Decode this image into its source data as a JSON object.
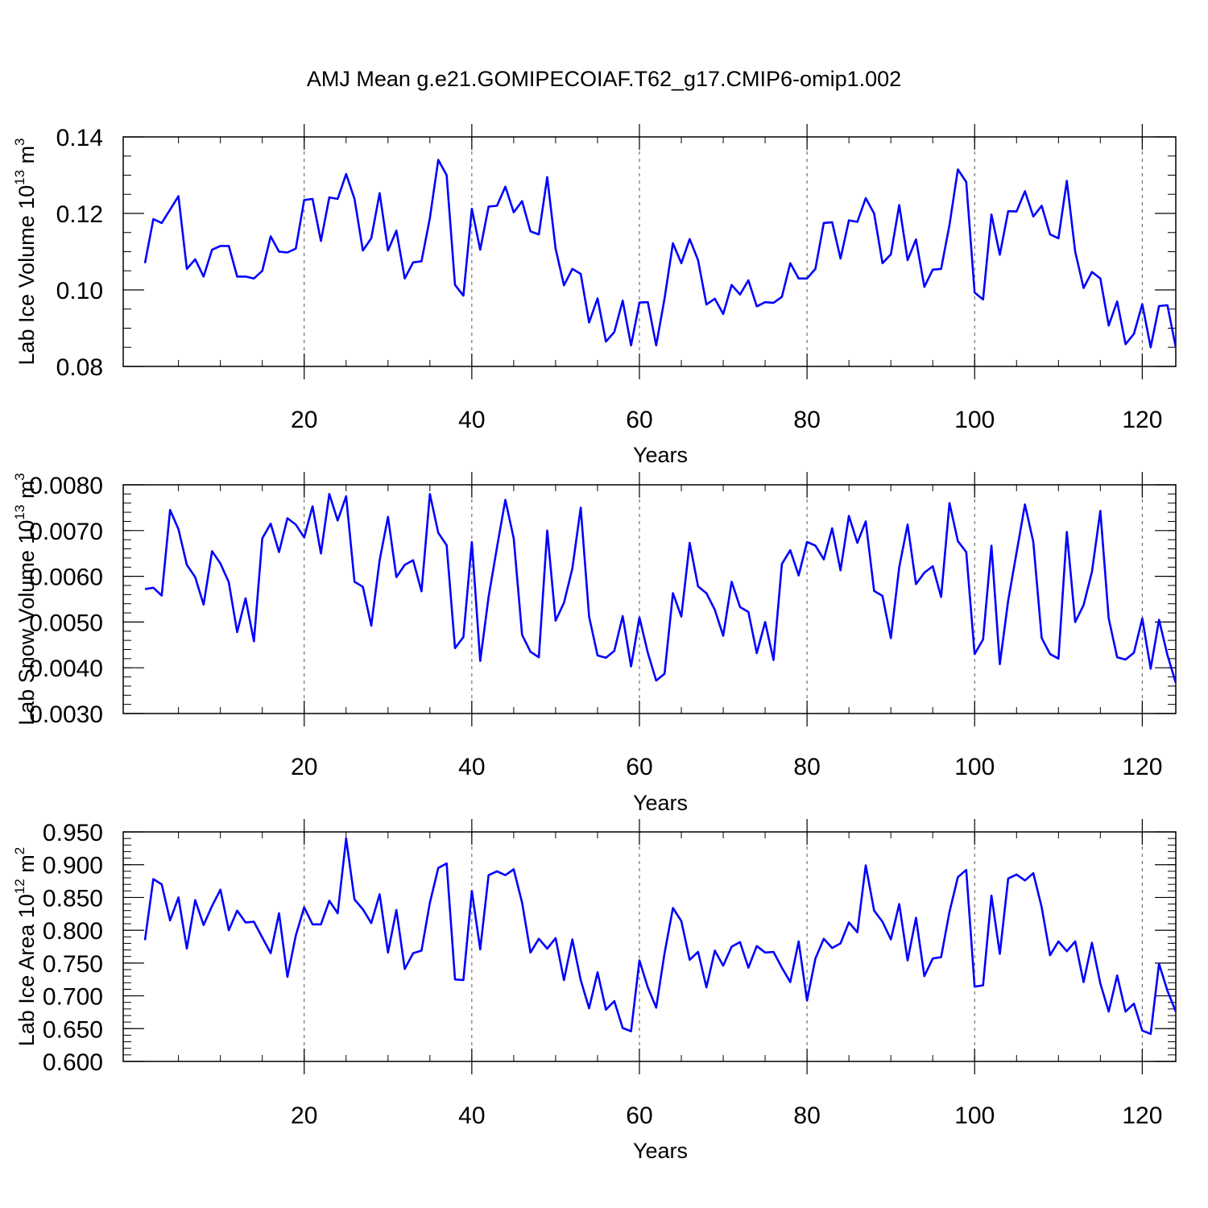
{
  "title": "AMJ Mean g.e21.GOMIPECOIAF.T62_g17.CMIP6-omip1.002",
  "colors": {
    "line": "#0000ff",
    "axis": "#000000",
    "grid": "#555555"
  },
  "chart_data": [
    {
      "type": "line",
      "ylabel": {
        "prefix": "Lab Ice Volume 10",
        "exp": "13",
        "unit": " m",
        "unit_exp": "3"
      },
      "xlabel": "Years",
      "xlim": [
        1,
        124
      ],
      "ylim": [
        0.08,
        0.14
      ],
      "xticks": [
        20,
        40,
        60,
        80,
        100,
        120
      ],
      "xtick_labels": [
        "20",
        "40",
        "60",
        "80",
        "100",
        "120"
      ],
      "yticks": [
        0.08,
        0.1,
        0.12,
        0.14
      ],
      "ytick_labels": [
        "0.08",
        "0.10",
        "0.12",
        "0.14"
      ],
      "yminor_step": 0.005,
      "grid": "vertical dashed at x ticks",
      "series": [
        {
          "name": "Lab Ice Volume",
          "values": [
            0.107,
            0.1185,
            0.1175,
            0.121,
            0.1245,
            0.1055,
            0.108,
            0.1035,
            0.1105,
            0.1115,
            0.1115,
            0.1035,
            0.1035,
            0.103,
            0.105,
            0.114,
            0.11,
            0.1098,
            0.1108,
            0.1235,
            0.1238,
            0.1128,
            0.1242,
            0.1238,
            0.1303,
            0.1238,
            0.1103,
            0.1135,
            0.1253,
            0.1103,
            0.1155,
            0.103,
            0.1072,
            0.1075,
            0.1188,
            0.134,
            0.13,
            0.1013,
            0.0985,
            0.1212,
            0.1105,
            0.1218,
            0.122,
            0.127,
            0.1203,
            0.1232,
            0.1153,
            0.1145,
            0.1295,
            0.1108,
            0.1012,
            0.1055,
            0.1042,
            0.0915,
            0.0978,
            0.0865,
            0.089,
            0.0972,
            0.0855,
            0.0967,
            0.0968,
            0.0855,
            0.0978,
            0.1122,
            0.107,
            0.1133,
            0.1078,
            0.0962,
            0.0977,
            0.0937,
            0.1013,
            0.0988,
            0.1025,
            0.0957,
            0.0968,
            0.0966,
            0.0982,
            0.107,
            0.103,
            0.103,
            0.1055,
            0.1175,
            0.1177,
            0.1082,
            0.1182,
            0.1178,
            0.124,
            0.12,
            0.107,
            0.1093,
            0.1222,
            0.1078,
            0.1132,
            0.1008,
            0.1053,
            0.1055,
            0.117,
            0.1315,
            0.1282,
            0.0993,
            0.0975,
            0.1197,
            0.1092,
            0.1206,
            0.1205,
            0.1258,
            0.1192,
            0.122,
            0.1145,
            0.1135,
            0.1285,
            0.11,
            0.1005,
            0.1047,
            0.103,
            0.0907,
            0.097,
            0.0858,
            0.0885,
            0.0963,
            0.085,
            0.0958,
            0.096,
            0.085
          ]
        }
      ]
    },
    {
      "type": "line",
      "ylabel": {
        "prefix": "Lab Snow Volume 10",
        "exp": "13",
        "unit": " m",
        "unit_exp": "3"
      },
      "xlabel": "Years",
      "xlim": [
        1,
        124
      ],
      "ylim": [
        0.003,
        0.008
      ],
      "xticks": [
        20,
        40,
        60,
        80,
        100,
        120
      ],
      "xtick_labels": [
        "20",
        "40",
        "60",
        "80",
        "100",
        "120"
      ],
      "yticks": [
        0.003,
        0.004,
        0.005,
        0.006,
        0.007,
        0.008
      ],
      "ytick_labels": [
        "0.0030",
        "0.0040",
        "0.0050",
        "0.0060",
        "0.0070",
        "0.0080"
      ],
      "yminor_step": 0.0002,
      "grid": "vertical dashed at x ticks",
      "series": [
        {
          "name": "Lab Snow Volume",
          "values": [
            0.00572,
            0.00575,
            0.00558,
            0.00745,
            0.00703,
            0.00625,
            0.00598,
            0.00538,
            0.00655,
            0.00628,
            0.00587,
            0.00478,
            0.00552,
            0.00458,
            0.00683,
            0.00715,
            0.00653,
            0.00727,
            0.00713,
            0.00685,
            0.00753,
            0.0065,
            0.0078,
            0.00722,
            0.00775,
            0.00588,
            0.00577,
            0.00492,
            0.00635,
            0.0073,
            0.00598,
            0.00625,
            0.00635,
            0.00567,
            0.0078,
            0.00695,
            0.00668,
            0.00443,
            0.00467,
            0.00675,
            0.00415,
            0.00555,
            0.00663,
            0.00767,
            0.00683,
            0.00472,
            0.00435,
            0.00423,
            0.007,
            0.00503,
            0.00542,
            0.00617,
            0.0075,
            0.00512,
            0.00427,
            0.00422,
            0.00437,
            0.00513,
            0.00403,
            0.0051,
            0.00433,
            0.00372,
            0.00387,
            0.00563,
            0.00512,
            0.00673,
            0.00578,
            0.00563,
            0.00527,
            0.0047,
            0.00588,
            0.00533,
            0.00522,
            0.00432,
            0.005,
            0.00417,
            0.00627,
            0.00657,
            0.00602,
            0.00675,
            0.00667,
            0.00637,
            0.00705,
            0.00613,
            0.00732,
            0.00673,
            0.0072,
            0.00568,
            0.00557,
            0.00465,
            0.0062,
            0.00713,
            0.00583,
            0.00608,
            0.00622,
            0.00555,
            0.0076,
            0.00677,
            0.00653,
            0.0043,
            0.00462,
            0.00667,
            0.00408,
            0.00547,
            0.00652,
            0.00757,
            0.00675,
            0.00465,
            0.0043,
            0.0042,
            0.00697,
            0.005,
            0.00537,
            0.0061,
            0.00743,
            0.00508,
            0.00423,
            0.00418,
            0.00433,
            0.00508,
            0.00398,
            0.00505,
            0.00428,
            0.00367
          ]
        }
      ]
    },
    {
      "type": "line",
      "ylabel": {
        "prefix": "Lab Ice Area 10",
        "exp": "12",
        "unit": " m",
        "unit_exp": "2"
      },
      "xlabel": "Years",
      "xlim": [
        1,
        124
      ],
      "ylim": [
        0.6,
        0.95
      ],
      "xticks": [
        20,
        40,
        60,
        80,
        100,
        120
      ],
      "xtick_labels": [
        "20",
        "40",
        "60",
        "80",
        "100",
        "120"
      ],
      "yticks": [
        0.6,
        0.65,
        0.7,
        0.75,
        0.8,
        0.85,
        0.9,
        0.95
      ],
      "ytick_labels": [
        "0.600",
        "0.650",
        "0.700",
        "0.750",
        "0.800",
        "0.850",
        "0.900",
        "0.950"
      ],
      "yminor_step": 0.01,
      "grid": "vertical dashed at x ticks",
      "series": [
        {
          "name": "Lab Ice Area",
          "values": [
            0.785,
            0.878,
            0.87,
            0.815,
            0.85,
            0.772,
            0.846,
            0.808,
            0.837,
            0.862,
            0.8,
            0.83,
            0.812,
            0.813,
            0.789,
            0.765,
            0.826,
            0.729,
            0.792,
            0.835,
            0.809,
            0.809,
            0.845,
            0.826,
            0.94,
            0.847,
            0.832,
            0.811,
            0.855,
            0.766,
            0.831,
            0.741,
            0.765,
            0.769,
            0.842,
            0.895,
            0.902,
            0.725,
            0.724,
            0.86,
            0.771,
            0.884,
            0.89,
            0.884,
            0.893,
            0.842,
            0.766,
            0.787,
            0.772,
            0.788,
            0.724,
            0.786,
            0.724,
            0.681,
            0.736,
            0.679,
            0.692,
            0.651,
            0.646,
            0.754,
            0.713,
            0.682,
            0.765,
            0.834,
            0.814,
            0.755,
            0.767,
            0.713,
            0.769,
            0.746,
            0.775,
            0.782,
            0.743,
            0.776,
            0.766,
            0.767,
            0.743,
            0.721,
            0.783,
            0.693,
            0.757,
            0.787,
            0.773,
            0.78,
            0.812,
            0.797,
            0.899,
            0.83,
            0.813,
            0.786,
            0.84,
            0.754,
            0.819,
            0.73,
            0.757,
            0.759,
            0.828,
            0.881,
            0.892,
            0.714,
            0.716,
            0.853,
            0.764,
            0.879,
            0.885,
            0.876,
            0.887,
            0.835,
            0.762,
            0.783,
            0.768,
            0.783,
            0.721,
            0.781,
            0.719,
            0.676,
            0.731,
            0.676,
            0.688,
            0.647,
            0.642,
            0.749,
            0.708,
            0.676
          ]
        }
      ]
    }
  ]
}
